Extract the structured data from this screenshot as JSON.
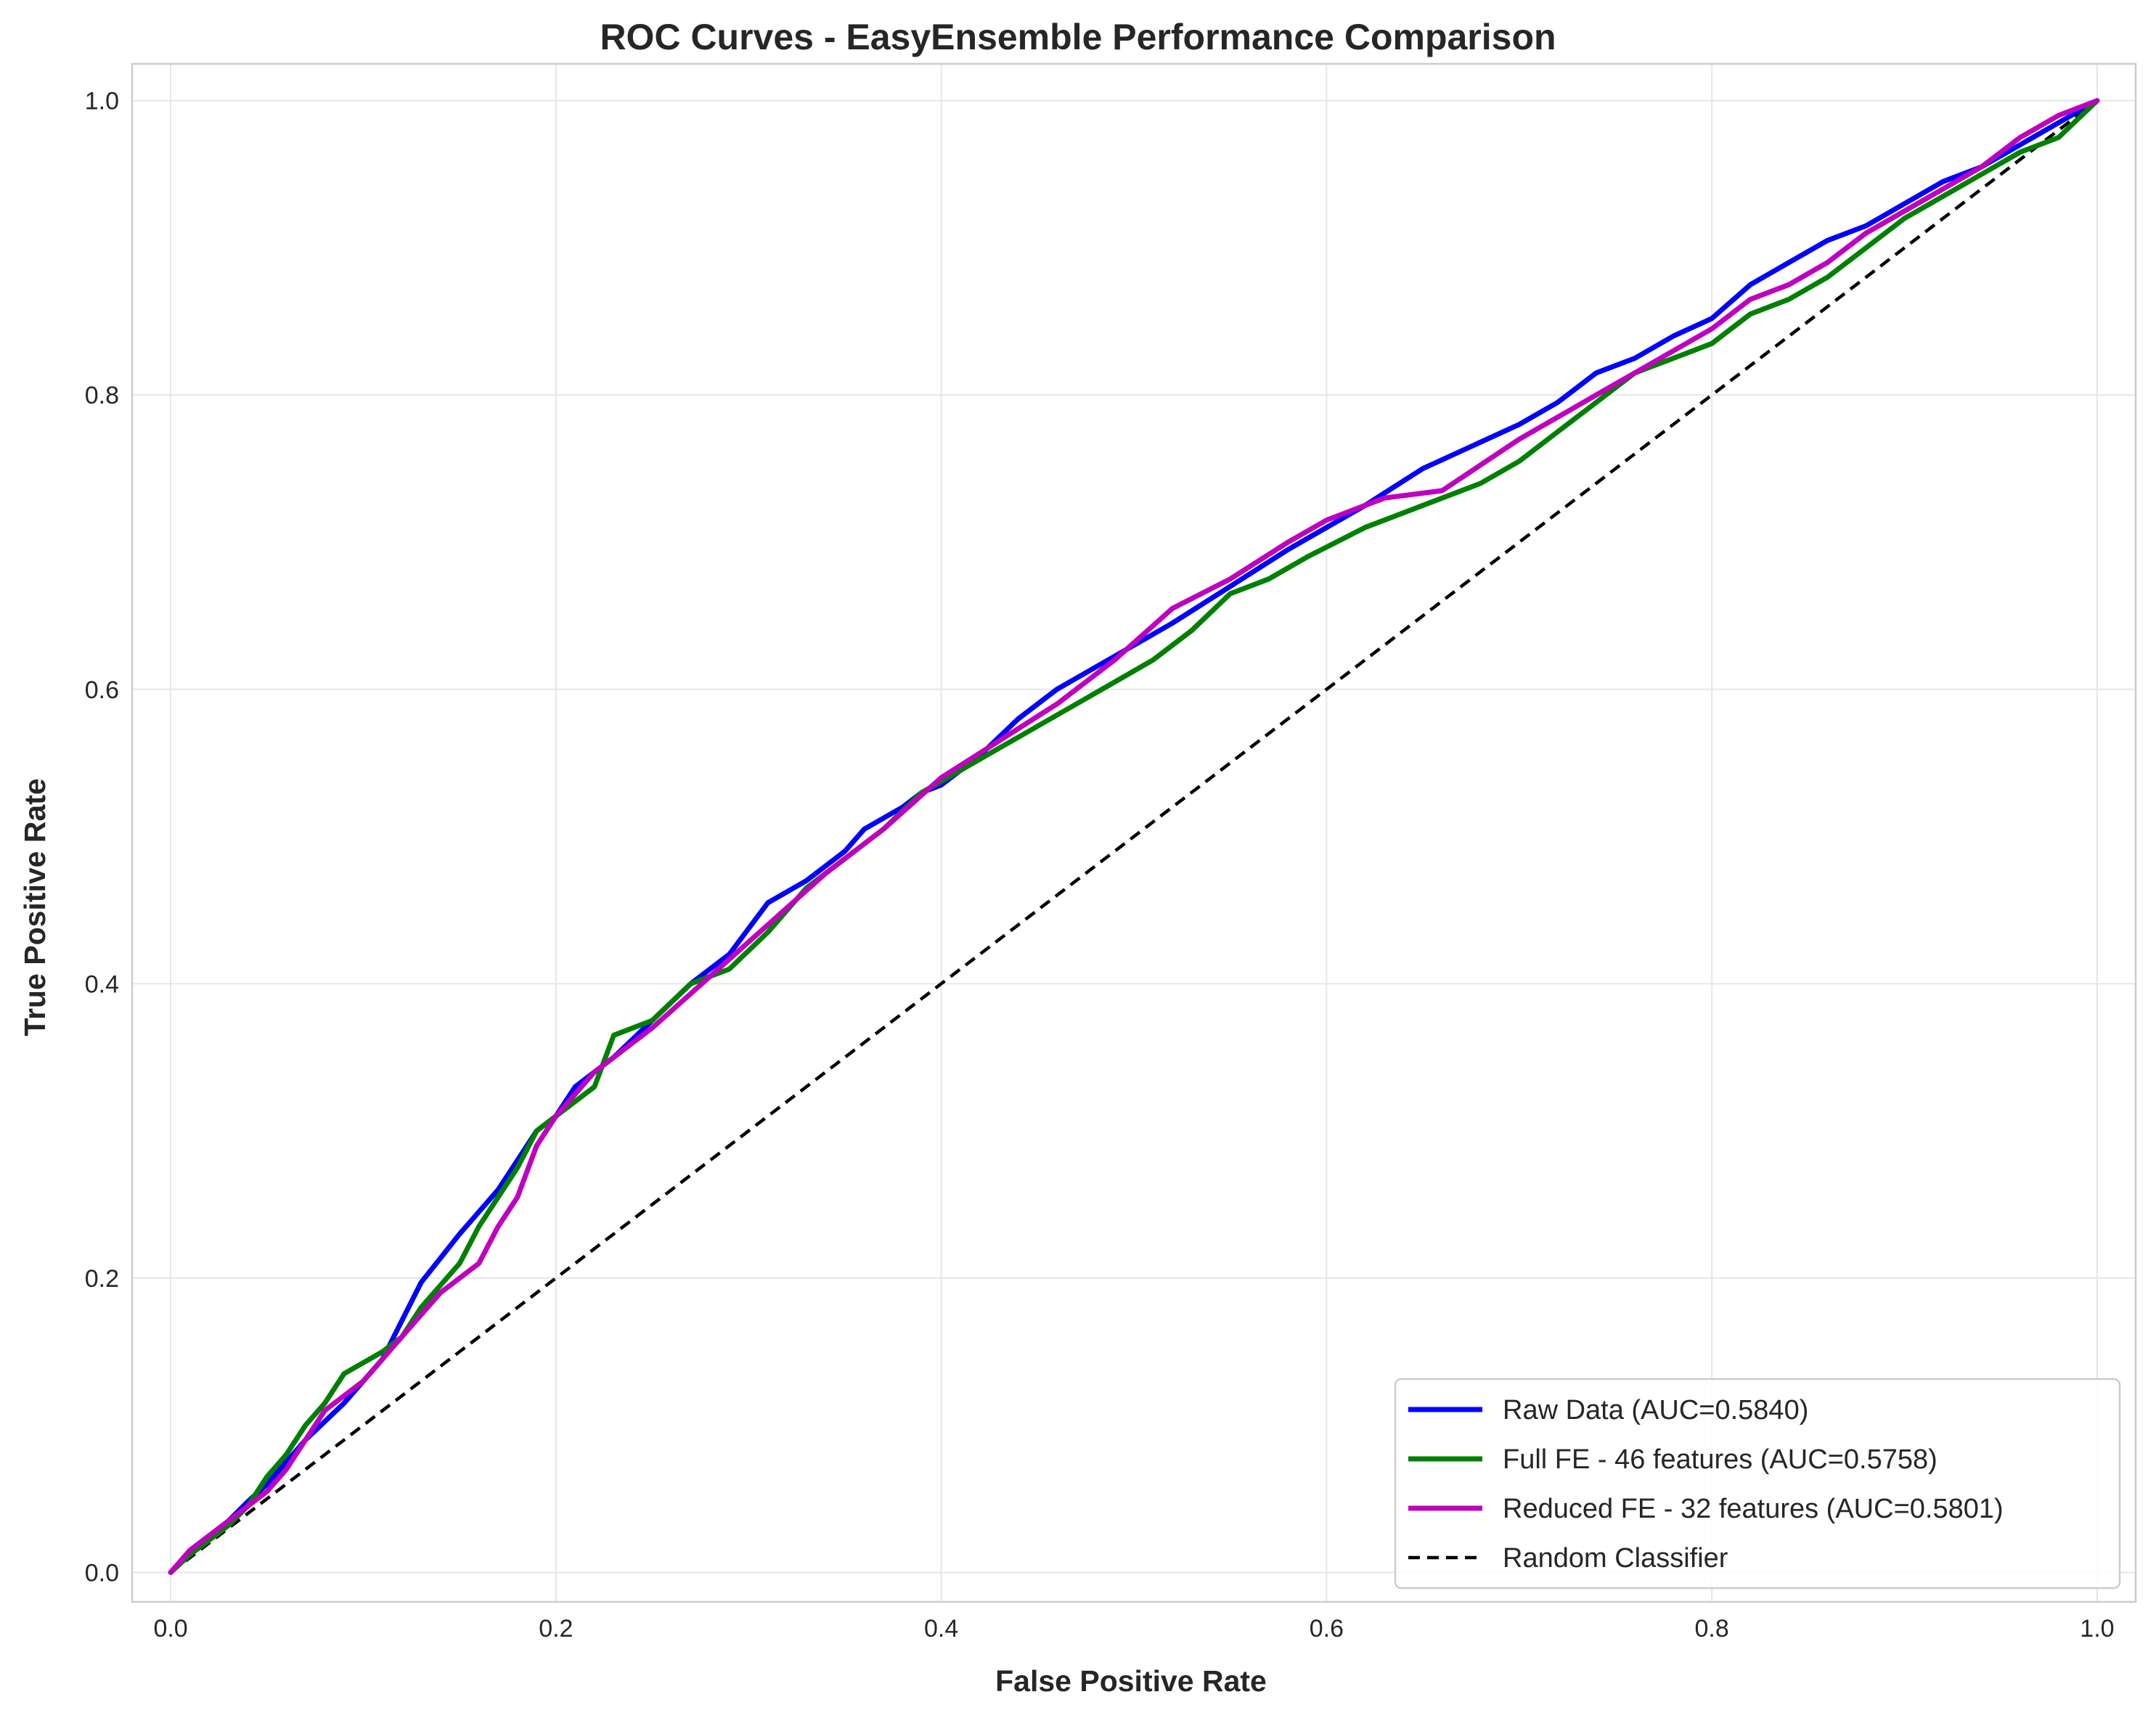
{
  "chart_data": {
    "type": "line",
    "title": "ROC Curves - EasyEnsemble Performance Comparison",
    "xlabel": "False Positive Rate",
    "ylabel": "True Positive Rate",
    "xlim": [
      -0.02,
      1.02
    ],
    "ylim": [
      -0.02,
      1.025
    ],
    "xticks": [
      "0.0",
      "0.2",
      "0.4",
      "0.6",
      "0.8",
      "1.0"
    ],
    "yticks": [
      "0.0",
      "0.2",
      "0.4",
      "0.6",
      "0.8",
      "1.0"
    ],
    "grid": true,
    "legend_position": "lower-right",
    "series": [
      {
        "name": "Raw Data (AUC=0.5840)",
        "color": "#0000ff",
        "x": [
          0,
          0.01,
          0.02,
          0.03,
          0.04,
          0.05,
          0.06,
          0.07,
          0.09,
          0.11,
          0.13,
          0.15,
          0.17,
          0.18,
          0.19,
          0.2,
          0.21,
          0.23,
          0.25,
          0.27,
          0.29,
          0.31,
          0.33,
          0.35,
          0.36,
          0.38,
          0.39,
          0.4,
          0.42,
          0.44,
          0.46,
          0.48,
          0.5,
          0.52,
          0.55,
          0.58,
          0.62,
          0.65,
          0.7,
          0.72,
          0.74,
          0.76,
          0.78,
          0.8,
          0.82,
          0.84,
          0.86,
          0.88,
          0.9,
          0.92,
          0.94,
          0.96,
          0.98,
          1.0
        ],
        "y": [
          0,
          0.015,
          0.025,
          0.035,
          0.048,
          0.06,
          0.075,
          0.09,
          0.115,
          0.145,
          0.197,
          0.23,
          0.26,
          0.28,
          0.3,
          0.31,
          0.33,
          0.35,
          0.375,
          0.4,
          0.42,
          0.455,
          0.47,
          0.49,
          0.505,
          0.52,
          0.53,
          0.535,
          0.555,
          0.58,
          0.6,
          0.615,
          0.63,
          0.645,
          0.67,
          0.695,
          0.725,
          0.75,
          0.78,
          0.795,
          0.815,
          0.825,
          0.84,
          0.852,
          0.875,
          0.89,
          0.905,
          0.915,
          0.93,
          0.945,
          0.955,
          0.97,
          0.985,
          1.0
        ]
      },
      {
        "name": "Full FE - 46 features (AUC=0.5758)",
        "color": "#008000",
        "x": [
          0,
          0.01,
          0.02,
          0.03,
          0.04,
          0.05,
          0.06,
          0.07,
          0.08,
          0.09,
          0.11,
          0.12,
          0.13,
          0.14,
          0.15,
          0.16,
          0.17,
          0.18,
          0.19,
          0.2,
          0.22,
          0.23,
          0.25,
          0.27,
          0.29,
          0.31,
          0.33,
          0.35,
          0.37,
          0.39,
          0.41,
          0.43,
          0.45,
          0.47,
          0.49,
          0.51,
          0.53,
          0.55,
          0.57,
          0.59,
          0.62,
          0.65,
          0.68,
          0.7,
          0.72,
          0.74,
          0.76,
          0.78,
          0.8,
          0.82,
          0.84,
          0.86,
          0.88,
          0.9,
          0.92,
          0.94,
          0.96,
          0.98,
          1.0
        ],
        "y": [
          0,
          0.012,
          0.022,
          0.032,
          0.045,
          0.065,
          0.08,
          0.1,
          0.115,
          0.135,
          0.15,
          0.16,
          0.18,
          0.195,
          0.21,
          0.235,
          0.255,
          0.275,
          0.3,
          0.31,
          0.33,
          0.365,
          0.375,
          0.4,
          0.41,
          0.435,
          0.465,
          0.485,
          0.505,
          0.53,
          0.545,
          0.56,
          0.575,
          0.59,
          0.605,
          0.62,
          0.64,
          0.665,
          0.675,
          0.69,
          0.71,
          0.725,
          0.74,
          0.755,
          0.775,
          0.795,
          0.815,
          0.825,
          0.835,
          0.855,
          0.865,
          0.88,
          0.9,
          0.92,
          0.935,
          0.95,
          0.965,
          0.975,
          1.0
        ]
      },
      {
        "name": "Reduced FE - 32 features (AUC=0.5801)",
        "color": "#bf00bf",
        "x": [
          0,
          0.01,
          0.02,
          0.03,
          0.04,
          0.05,
          0.06,
          0.07,
          0.08,
          0.1,
          0.12,
          0.14,
          0.16,
          0.17,
          0.18,
          0.19,
          0.2,
          0.22,
          0.25,
          0.28,
          0.31,
          0.34,
          0.37,
          0.4,
          0.43,
          0.46,
          0.49,
          0.52,
          0.55,
          0.58,
          0.6,
          0.63,
          0.66,
          0.7,
          0.74,
          0.78,
          0.8,
          0.82,
          0.84,
          0.86,
          0.88,
          0.9,
          0.92,
          0.94,
          0.96,
          0.98,
          1.0
        ],
        "y": [
          0,
          0.015,
          0.025,
          0.035,
          0.045,
          0.055,
          0.07,
          0.09,
          0.11,
          0.13,
          0.16,
          0.19,
          0.21,
          0.235,
          0.255,
          0.29,
          0.31,
          0.34,
          0.37,
          0.405,
          0.44,
          0.475,
          0.505,
          0.54,
          0.565,
          0.59,
          0.62,
          0.655,
          0.675,
          0.7,
          0.715,
          0.73,
          0.735,
          0.77,
          0.8,
          0.83,
          0.845,
          0.865,
          0.875,
          0.89,
          0.91,
          0.925,
          0.94,
          0.955,
          0.975,
          0.99,
          1.0
        ]
      },
      {
        "name": "Random Classifier",
        "color": "#000000",
        "dashed": true,
        "x": [
          0,
          1
        ],
        "y": [
          0,
          1
        ]
      }
    ]
  }
}
